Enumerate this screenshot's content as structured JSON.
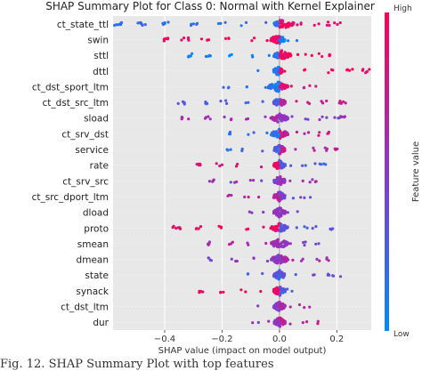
{
  "caption": "Fig. 12. SHAP Summary Plot with top features",
  "chart_data": {
    "type": "scatter",
    "title": "SHAP Summary Plot for Class 0: Normal with Kernel Explainer",
    "xlabel": "SHAP value (impact on model output)",
    "xlim": [
      -0.58,
      0.32
    ],
    "xticks": [
      -0.4,
      -0.2,
      0.0,
      0.2
    ],
    "xtick_labels": [
      "−0.4",
      "−0.2",
      "0.0",
      "0.2"
    ],
    "grid": true,
    "colorbar": {
      "label": "Feature value",
      "high": "High",
      "low": "Low",
      "low_color": "#008afb",
      "high_color": "#ff0052"
    },
    "features": [
      {
        "name": "ct_state_ttl",
        "neg": [
          -0.56,
          -0.48,
          -0.4,
          -0.3,
          -0.2,
          -0.12,
          -0.05
        ],
        "pos": [
          0.0,
          0.05,
          0.09,
          0.13,
          0.17,
          0.2
        ],
        "neg_level": 0.15,
        "pos_level": 0.9,
        "core": [
          -0.02,
          0.05
        ]
      },
      {
        "name": "swin",
        "neg": [
          -0.4,
          -0.33,
          -0.26,
          -0.18,
          -0.1,
          -0.04
        ],
        "pos": [
          0.0,
          0.03,
          0.05
        ],
        "neg_level": 0.95,
        "pos_level": 0.1,
        "core": [
          -0.03,
          0.02
        ]
      },
      {
        "name": "sttl",
        "neg": [
          -0.32,
          -0.25,
          -0.18,
          -0.1,
          -0.04
        ],
        "pos": [
          0.01,
          0.05,
          0.1,
          0.14,
          0.18
        ],
        "neg_level": 0.1,
        "pos_level": 0.95,
        "core": [
          -0.02,
          0.04
        ]
      },
      {
        "name": "dttl",
        "neg": [
          -0.06,
          -0.02
        ],
        "pos": [
          0.02,
          0.1,
          0.18,
          0.25,
          0.3
        ],
        "neg_level": 0.1,
        "pos_level": 0.95,
        "core": [
          -0.02,
          0.01
        ]
      },
      {
        "name": "ct_dst_sport_ltm",
        "neg": [
          -0.19,
          -0.12,
          -0.06
        ],
        "pos": [
          0.01,
          0.05,
          0.08,
          0.12
        ],
        "neg_level": 0.15,
        "pos_level": 0.85,
        "core": [
          -0.04,
          0.03
        ]
      },
      {
        "name": "ct_dst_src_ltm",
        "neg": [
          -0.34,
          -0.26,
          -0.19,
          -0.12,
          -0.06
        ],
        "pos": [
          0.01,
          0.05,
          0.1,
          0.15,
          0.2,
          0.22
        ],
        "neg_level": 0.3,
        "pos_level": 0.75,
        "core": [
          -0.02,
          0.02
        ]
      },
      {
        "name": "sload",
        "neg": [
          -0.33,
          -0.25,
          -0.18,
          -0.12,
          -0.06
        ],
        "pos": [
          0.01,
          0.05,
          0.1,
          0.15,
          0.2,
          0.22
        ],
        "neg_level": 0.6,
        "pos_level": 0.5,
        "core": [
          -0.03,
          0.03
        ]
      },
      {
        "name": "ct_srv_dst",
        "neg": [
          -0.16,
          -0.1,
          -0.05
        ],
        "pos": [
          0.01,
          0.05,
          0.09,
          0.13,
          0.16
        ],
        "neg_level": 0.15,
        "pos_level": 0.75,
        "core": [
          -0.03,
          0.03
        ]
      },
      {
        "name": "service",
        "neg": [
          -0.18,
          -0.12,
          -0.06
        ],
        "pos": [
          0.01,
          0.06,
          0.11,
          0.16,
          0.2
        ],
        "neg_level": 0.25,
        "pos_level": 0.7,
        "core": [
          -0.02,
          0.02
        ]
      },
      {
        "name": "rate",
        "neg": [
          -0.29,
          -0.21,
          -0.14,
          -0.07
        ],
        "pos": [
          0.01,
          0.05,
          0.09,
          0.13,
          0.16
        ],
        "neg_level": 0.9,
        "pos_level": 0.25,
        "core": [
          -0.02,
          0.02
        ]
      },
      {
        "name": "ct_srv_src",
        "neg": [
          -0.23,
          -0.16,
          -0.1,
          -0.05
        ],
        "pos": [
          0.01,
          0.04,
          0.07,
          0.1,
          0.12
        ],
        "neg_level": 0.5,
        "pos_level": 0.6,
        "core": [
          -0.02,
          0.02
        ]
      },
      {
        "name": "ct_src_dport_ltm",
        "neg": [
          -0.17,
          -0.11,
          -0.06
        ],
        "pos": [
          0.01,
          0.04,
          0.07,
          0.1
        ],
        "neg_level": 0.7,
        "pos_level": 0.4,
        "core": [
          -0.02,
          0.02
        ]
      },
      {
        "name": "dload",
        "neg": [
          -0.1,
          -0.05
        ],
        "pos": [
          0.01,
          0.03,
          0.05
        ],
        "neg_level": 0.5,
        "pos_level": 0.5,
        "core": [
          -0.02,
          0.02
        ]
      },
      {
        "name": "proto",
        "neg": [
          -0.36,
          -0.28,
          -0.2,
          -0.12,
          -0.06
        ],
        "pos": [
          0.01,
          0.05,
          0.09,
          0.13,
          0.18
        ],
        "neg_level": 0.95,
        "pos_level": 0.3,
        "core": [
          -0.03,
          0.03
        ]
      },
      {
        "name": "smean",
        "neg": [
          -0.24,
          -0.17,
          -0.1,
          -0.05
        ],
        "pos": [
          0.01,
          0.04,
          0.07,
          0.1,
          0.13
        ],
        "neg_level": 0.6,
        "pos_level": 0.5,
        "core": [
          -0.03,
          0.03
        ]
      },
      {
        "name": "dmean",
        "neg": [
          -0.24,
          -0.16,
          -0.09,
          -0.04
        ],
        "pos": [
          0.01,
          0.05,
          0.09,
          0.13,
          0.16
        ],
        "neg_level": 0.5,
        "pos_level": 0.6,
        "core": [
          -0.03,
          0.03
        ]
      },
      {
        "name": "state",
        "neg": [
          -0.1,
          -0.05
        ],
        "pos": [
          0.01,
          0.06,
          0.11,
          0.16,
          0.2
        ],
        "neg_level": 0.3,
        "pos_level": 0.35,
        "core": [
          -0.02,
          0.02
        ]
      },
      {
        "name": "synack",
        "neg": [
          -0.27,
          -0.2,
          -0.13,
          -0.07
        ],
        "pos": [
          0.01,
          0.03,
          0.05
        ],
        "neg_level": 0.95,
        "pos_level": 0.3,
        "core": [
          -0.02,
          0.02
        ]
      },
      {
        "name": "ct_dst_ltm",
        "neg": [
          -0.07,
          -0.03
        ],
        "pos": [
          0.01,
          0.04,
          0.07,
          0.1
        ],
        "neg_level": 0.4,
        "pos_level": 0.6,
        "core": [
          -0.02,
          0.02
        ]
      },
      {
        "name": "dur",
        "neg": [
          -0.08,
          -0.04
        ],
        "pos": [
          0.01,
          0.05,
          0.09,
          0.13
        ],
        "neg_level": 0.5,
        "pos_level": 0.7,
        "core": [
          -0.02,
          0.02
        ]
      }
    ]
  }
}
